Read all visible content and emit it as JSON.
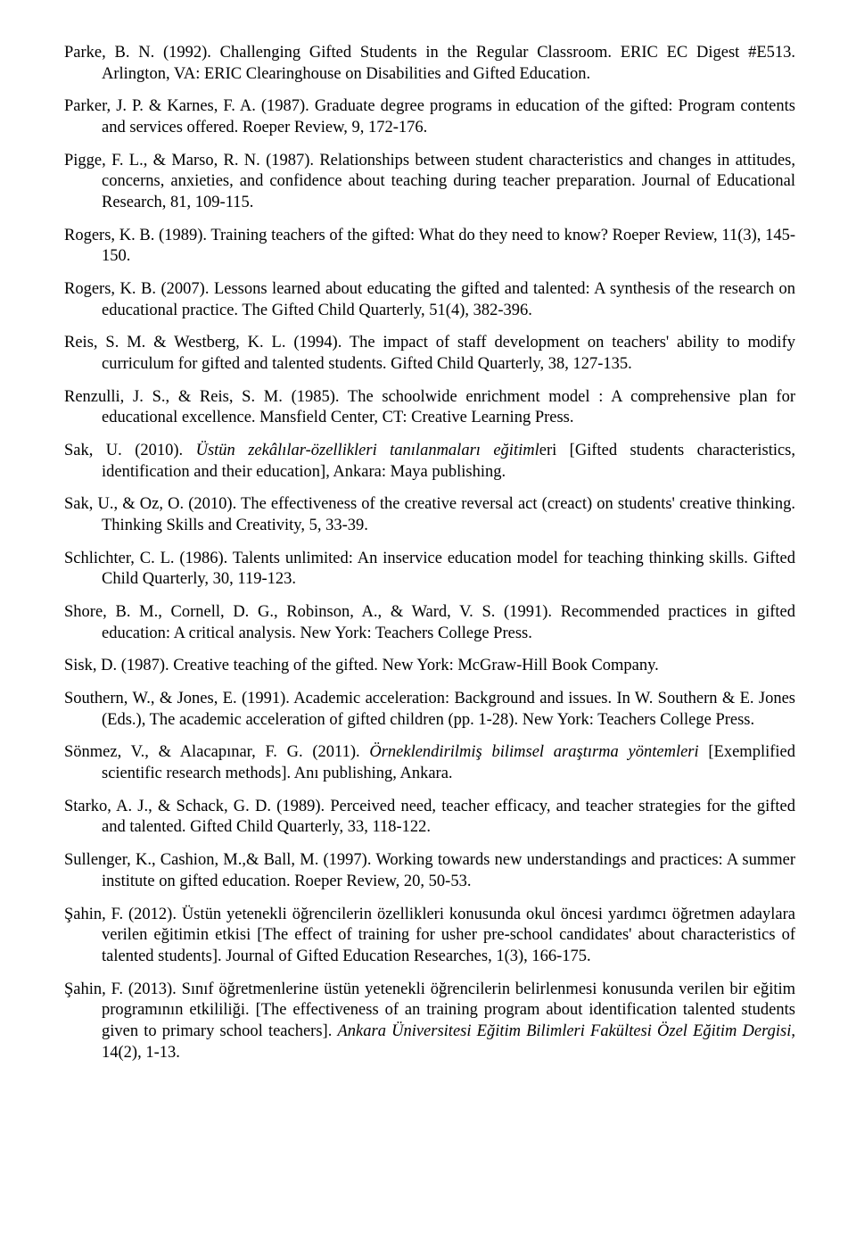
{
  "references": [
    "Parke, B. N. (1992). Challenging Gifted Students in the Regular Classroom. ERIC EC Digest #E513. Arlington, VA: ERIC Clearinghouse on Disabilities and Gifted Education.",
    "Parker, J. P. & Karnes, F. A. (1987). Graduate degree programs in education of the gifted: Program contents and services offered. Roeper Review, 9, 172-176.",
    "Pigge, F. L., & Marso, R. N. (1987). Relationships between student characteristics and changes in attitudes, concerns, anxieties, and confidence about teaching during teacher preparation. Journal of Educational Research, 81, 109-115.",
    "Rogers, K. B. (1989). Training teachers of the gifted: What do they need to know? Roeper Review, 11(3), 145-150.",
    "Rogers, K. B. (2007). Lessons learned about educating the gifted and talented: A synthesis of the research on educational practice. The Gifted Child Quarterly, 51(4), 382-396.",
    "Reis, S. M. & Westberg, K. L. (1994). The impact of staff development on teachers' ability to modify curriculum for gifted and talented students. Gifted Child Quarterly, 38, 127-135.",
    "Renzulli, J. S., & Reis, S. M. (1985). The schoolwide enrichment model : A comprehensive plan for educational excellence. Mansfield Center, CT: Creative Learning Press.",
    "Sak, U., & Oz, O. (2010). The effectiveness of the creative reversal act (creact) on students' creative thinking. Thinking Skills and Creativity, 5, 33-39.",
    "Schlichter, C. L. (1986). Talents unlimited: An inservice education model for teaching thinking skills. Gifted Child Quarterly, 30, 119-123.",
    "Shore, B. M., Cornell, D. G., Robinson, A., & Ward, V. S. (1991). Recommended practices in gifted education: A critical analysis. New York: Teachers College Press.",
    "Sisk, D. (1987). Creative teaching of the gifted. New York: McGraw-Hill Book Company.",
    "Southern, W., & Jones, E. (1991). Academic acceleration: Background and issues. In W. Southern & E. Jones (Eds.), The academic acceleration of gifted children (pp. 1-28). New York: Teachers College Press.",
    "Starko, A. J., & Schack, G. D. (1989). Perceived need, teacher efficacy, and teacher strategies for the gifted and talented. Gifted Child Quarterly, 33, 118-122.",
    "Sullenger, K., Cashion, M.,& Ball, M. (1997). Working towards new understandings and practices: A summer institute on gifted education. Roeper Review, 20, 50-53.",
    "Şahin, F. (2012). Üstün yetenekli öğrencilerin özellikleri konusunda okul öncesi yardımcı öğretmen adaylara verilen eğitimin etkisi [The effect of training for usher pre-school candidates' about characteristics of talented students]. Journal of Gifted Education Researches, 1(3), 166-175."
  ],
  "sak2010": {
    "prefix": "Sak, U. (2010). ",
    "italic": "Üstün zekâlılar-özellikleri tanılanmaları eğitiml",
    "suffix": "eri [Gifted students characteristics, identification and their education], Ankara: Maya publishing."
  },
  "sonmez2011": {
    "prefix": "Sönmez, V., & Alacapınar, F. G. (2011). ",
    "italic": "Örneklendirilmiş bilimsel araştırma yöntemleri",
    "suffix": " [Exemplified scientific research methods]. Anı publishing, Ankara."
  },
  "sahin2013": {
    "prefix": "Şahin, F. (2013). Sınıf öğretmenlerine üstün yetenekli öğrencilerin belirlenmesi konusunda verilen bir eğitim programının etkililiği. [The effectiveness of an training program about identification talented students given to primary school teachers]. ",
    "italic": "Ankara Üniversitesi Eğitim Bilimleri Fakültesi Özel Eğitim Dergisi",
    "suffix": ", 14(2), 1-13."
  }
}
